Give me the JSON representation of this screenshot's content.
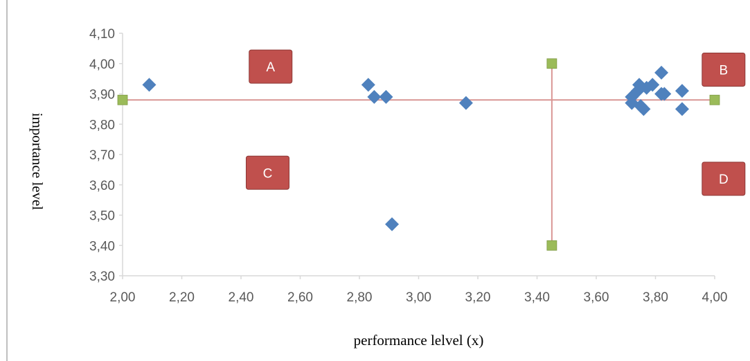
{
  "chart_data": {
    "type": "scatter",
    "xlabel": "performance lelvel (x)",
    "ylabel": "importance level",
    "xlim": [
      2.0,
      4.0
    ],
    "ylim": [
      3.3,
      4.1
    ],
    "x_ticks": [
      "2,00",
      "2,20",
      "2,40",
      "2,60",
      "2,80",
      "3,00",
      "3,20",
      "3,40",
      "3,60",
      "3,80",
      "4,00"
    ],
    "y_ticks": [
      "3,30",
      "3,40",
      "3,50",
      "3,60",
      "3,70",
      "3,80",
      "3,90",
      "4,00",
      "4,10"
    ],
    "grid": false,
    "legend": "none",
    "colors": {
      "points": "#4f81bd",
      "divider_line": "#d99694",
      "divider_markers": "#9bbb59",
      "quadrant_label_fill": "#c0504d",
      "axis": "#d9d9d9"
    },
    "points": [
      {
        "x": 2.09,
        "y": 3.93
      },
      {
        "x": 2.83,
        "y": 3.93
      },
      {
        "x": 2.85,
        "y": 3.89
      },
      {
        "x": 2.89,
        "y": 3.89
      },
      {
        "x": 3.16,
        "y": 3.87
      },
      {
        "x": 2.91,
        "y": 3.47
      },
      {
        "x": 3.72,
        "y": 3.89
      },
      {
        "x": 3.72,
        "y": 3.87
      },
      {
        "x": 3.74,
        "y": 3.91
      },
      {
        "x": 3.745,
        "y": 3.93
      },
      {
        "x": 3.75,
        "y": 3.86
      },
      {
        "x": 3.76,
        "y": 3.85
      },
      {
        "x": 3.77,
        "y": 3.92
      },
      {
        "x": 3.79,
        "y": 3.93
      },
      {
        "x": 3.82,
        "y": 3.97
      },
      {
        "x": 3.82,
        "y": 3.9
      },
      {
        "x": 3.83,
        "y": 3.9
      },
      {
        "x": 3.89,
        "y": 3.91
      },
      {
        "x": 3.89,
        "y": 3.85
      }
    ],
    "divider_lines": [
      {
        "orientation": "horizontal",
        "from": {
          "x": 2.0,
          "y": 3.88
        },
        "to": {
          "x": 4.0,
          "y": 3.88
        }
      },
      {
        "orientation": "vertical",
        "from": {
          "x": 3.45,
          "y": 3.4
        },
        "to": {
          "x": 3.45,
          "y": 4.0
        }
      }
    ],
    "quadrant_labels": [
      {
        "text": "A",
        "x": 2.5,
        "y": 3.99
      },
      {
        "text": "B",
        "x": 4.03,
        "y": 3.98
      },
      {
        "text": "C",
        "x": 2.49,
        "y": 3.64
      },
      {
        "text": "D",
        "x": 4.03,
        "y": 3.62
      }
    ]
  }
}
